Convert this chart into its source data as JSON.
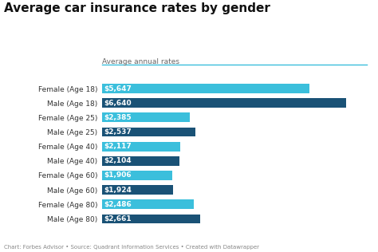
{
  "title": "Average car insurance rates by gender",
  "subtitle": "Average annual rates",
  "categories": [
    "Female (Age 18)",
    "Male (Age 18)",
    "Female (Age 25)",
    "Male (Age 25)",
    "Female (Age 40)",
    "Male (Age 40)",
    "Female (Age 60)",
    "Male (Age 60)",
    "Female (Age 80)",
    "Male (Age 80)"
  ],
  "values": [
    5647,
    6640,
    2385,
    2537,
    2117,
    2104,
    1906,
    1924,
    2486,
    2661
  ],
  "labels": [
    "$5,647",
    "$6,640",
    "$2,385",
    "$2,537",
    "$2,117",
    "$2,104",
    "$1,906",
    "$1,924",
    "$2,486",
    "$2,661"
  ],
  "colors": [
    "#3bbfdc",
    "#1a5276",
    "#3bbfdc",
    "#1a5276",
    "#3bbfdc",
    "#1a5276",
    "#3bbfdc",
    "#1a5276",
    "#3bbfdc",
    "#1a5276"
  ],
  "background_color": "#ffffff",
  "title_fontsize": 11,
  "subtitle_fontsize": 6.5,
  "bar_label_fontsize": 6.5,
  "ytick_fontsize": 6.5,
  "footer": "Chart: Forbes Advisor • Source: Quadrant Information Services • Created with Datawrapper",
  "footer_fontsize": 5,
  "xlim": [
    0,
    7200
  ],
  "accent_color": "#3bbfdc"
}
